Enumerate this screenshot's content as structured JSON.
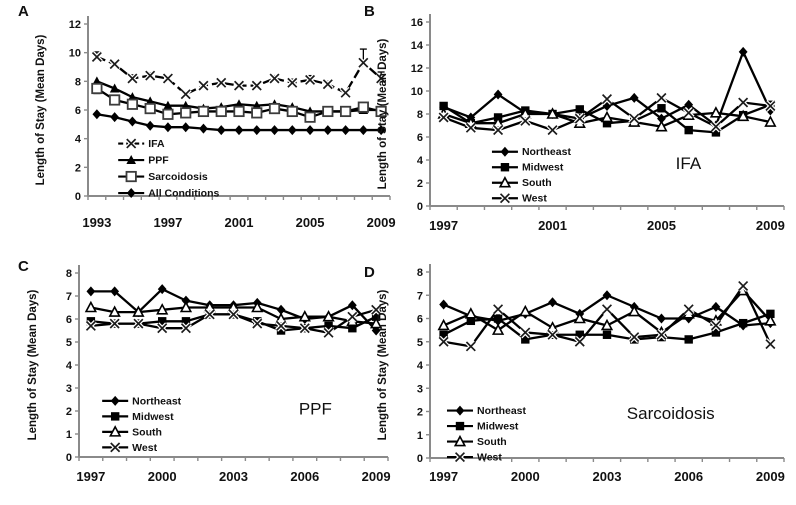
{
  "figure": {
    "description": "Four-panel line chart figure of hospital length of stay",
    "background": "#ffffff",
    "line_color": "#000000",
    "axis_color": "#8a8a8a",
    "text_color": "#111111"
  },
  "chart_data": [
    {
      "panel_label": "A",
      "type": "line",
      "ylabel": "Length of Stay (Mean Days)",
      "xlabel": "",
      "ylim": [
        0,
        12
      ],
      "ytick_step": 2,
      "x": [
        1993,
        1994,
        1995,
        1996,
        1997,
        1998,
        1999,
        2000,
        2001,
        2002,
        2003,
        2004,
        2005,
        2006,
        2007,
        2008,
        2009
      ],
      "xtick_labels": [
        1993,
        1997,
        2001,
        2005,
        2009
      ],
      "grid": false,
      "legend_position": "lower-left",
      "annotation": null,
      "series": [
        {
          "name": "IFA",
          "marker": "x",
          "dash": true,
          "values": [
            9.7,
            9.2,
            8.2,
            8.4,
            8.2,
            7.1,
            7.7,
            7.9,
            7.7,
            7.7,
            8.2,
            7.9,
            8.1,
            7.8,
            7.2,
            9.3,
            8.2
          ],
          "errors_up": [
            0.35,
            0,
            0.25,
            0.2,
            0.15,
            0,
            0.1,
            0,
            0,
            0.15,
            0.2,
            0.25,
            0.3,
            0.2,
            0,
            0.95,
            0.45
          ]
        },
        {
          "name": "PPF",
          "marker": "triangle-filled",
          "dash": false,
          "values": [
            8.0,
            7.5,
            6.9,
            6.6,
            6.3,
            6.3,
            6.1,
            6.2,
            6.4,
            6.3,
            6.4,
            6.2,
            5.9,
            5.9,
            5.9,
            6.0,
            6.0
          ]
        },
        {
          "name": "Sarcoidosis",
          "marker": "square-open",
          "dash": false,
          "values": [
            7.5,
            6.7,
            6.4,
            6.1,
            5.7,
            5.8,
            5.9,
            5.9,
            5.9,
            5.8,
            6.1,
            5.9,
            5.5,
            5.9,
            5.9,
            6.2,
            5.9
          ],
          "errors_down": [
            0.35,
            0,
            0,
            0,
            0,
            0,
            0,
            0,
            0,
            0,
            0,
            0,
            0,
            0,
            0,
            0,
            0
          ],
          "errors_up": [
            0,
            0,
            0,
            0,
            0,
            0,
            0,
            0,
            0,
            0,
            0,
            0,
            0,
            0,
            0,
            0,
            0.25
          ]
        },
        {
          "name": "All Conditions",
          "marker": "diamond-filled",
          "dash": false,
          "values": [
            5.7,
            5.5,
            5.2,
            4.9,
            4.8,
            4.8,
            4.7,
            4.6,
            4.6,
            4.6,
            4.6,
            4.6,
            4.6,
            4.6,
            4.6,
            4.6,
            4.6
          ]
        }
      ]
    },
    {
      "panel_label": "B",
      "type": "line",
      "ylabel": "Length of Stay (Mean Days)",
      "xlabel": "",
      "ylim": [
        0,
        16
      ],
      "ytick_step": 2,
      "x": [
        1997,
        1998,
        1999,
        2000,
        2001,
        2002,
        2003,
        2004,
        2005,
        2006,
        2007,
        2008,
        2009
      ],
      "xtick_labels": [
        1997,
        2001,
        2005,
        2009
      ],
      "grid": false,
      "legend_position": "lower-left",
      "annotation": "IFA",
      "series": [
        {
          "name": "Northeast",
          "marker": "diamond-filled",
          "dash": false,
          "values": [
            8.6,
            7.7,
            9.7,
            8.1,
            8.0,
            7.6,
            8.7,
            9.4,
            7.6,
            8.8,
            7.0,
            13.4,
            8.3
          ]
        },
        {
          "name": "Midwest",
          "marker": "square-filled",
          "dash": false,
          "values": [
            8.7,
            7.2,
            7.7,
            8.3,
            8.0,
            8.4,
            7.2,
            7.4,
            8.5,
            6.6,
            6.4,
            7.9,
            8.8
          ]
        },
        {
          "name": "South",
          "marker": "triangle-open",
          "dash": false,
          "values": [
            8.0,
            7.2,
            7.2,
            8.0,
            8.0,
            7.2,
            7.7,
            7.3,
            6.9,
            7.9,
            8.1,
            7.8,
            7.3
          ]
        },
        {
          "name": "West",
          "marker": "x",
          "dash": false,
          "values": [
            7.7,
            6.8,
            6.6,
            7.4,
            6.6,
            7.6,
            9.3,
            7.6,
            9.4,
            8.1,
            6.9,
            9.0,
            8.7
          ]
        }
      ]
    },
    {
      "panel_label": "C",
      "type": "line",
      "ylabel": "Length of Stay (Mean Days)",
      "xlabel": "",
      "ylim": [
        0,
        8
      ],
      "ytick_step": 1,
      "x": [
        1997,
        1998,
        1999,
        2000,
        2001,
        2002,
        2003,
        2004,
        2005,
        2006,
        2007,
        2008,
        2009
      ],
      "xtick_labels": [
        1997,
        2000,
        2003,
        2006,
        2009
      ],
      "grid": false,
      "legend_position": "lower-left",
      "annotation": "PPF",
      "series": [
        {
          "name": "Northeast",
          "marker": "diamond-filled",
          "dash": false,
          "values": [
            7.2,
            7.2,
            6.3,
            7.3,
            6.8,
            6.6,
            6.6,
            6.7,
            6.4,
            6.0,
            6.1,
            6.6,
            5.5
          ]
        },
        {
          "name": "Midwest",
          "marker": "square-filled",
          "dash": false,
          "values": [
            5.9,
            5.8,
            5.8,
            5.9,
            5.9,
            6.2,
            6.2,
            5.9,
            5.5,
            5.6,
            5.7,
            5.6,
            6.1
          ]
        },
        {
          "name": "South",
          "marker": "triangle-open",
          "dash": false,
          "values": [
            6.5,
            6.3,
            6.3,
            6.4,
            6.5,
            6.5,
            6.5,
            6.5,
            6.0,
            6.1,
            6.1,
            5.9,
            5.8
          ]
        },
        {
          "name": "West",
          "marker": "x",
          "dash": false,
          "values": [
            5.7,
            5.8,
            5.8,
            5.6,
            5.6,
            6.2,
            6.2,
            5.8,
            5.7,
            5.6,
            5.4,
            6.1,
            6.4
          ]
        }
      ]
    },
    {
      "panel_label": "D",
      "type": "line",
      "ylabel": "Length of Stay (Mean Days)",
      "xlabel": "",
      "ylim": [
        0,
        8
      ],
      "ytick_step": 1,
      "x": [
        1997,
        1998,
        1999,
        2000,
        2001,
        2002,
        2003,
        2004,
        2005,
        2006,
        2007,
        2008,
        2009
      ],
      "xtick_labels": [
        1997,
        2000,
        2003,
        2006,
        2009
      ],
      "grid": false,
      "legend_position": "lower-left",
      "annotation": "Sarcoidosis",
      "series": [
        {
          "name": "Northeast",
          "marker": "diamond-filled",
          "dash": false,
          "values": [
            6.6,
            6.1,
            5.9,
            6.2,
            6.7,
            6.2,
            7.0,
            6.5,
            6.0,
            6.0,
            6.5,
            5.7,
            5.8
          ]
        },
        {
          "name": "Midwest",
          "marker": "square-filled",
          "dash": false,
          "values": [
            5.3,
            5.9,
            6.0,
            5.1,
            5.3,
            5.3,
            5.3,
            5.1,
            5.2,
            5.1,
            5.4,
            5.8,
            6.2
          ]
        },
        {
          "name": "South",
          "marker": "triangle-open",
          "dash": false,
          "values": [
            5.7,
            6.2,
            5.5,
            6.3,
            5.6,
            6.0,
            5.7,
            6.3,
            5.4,
            6.2,
            5.9,
            7.2,
            5.9
          ]
        },
        {
          "name": "West",
          "marker": "x",
          "dash": false,
          "values": [
            5.0,
            4.8,
            6.4,
            5.4,
            5.3,
            5.0,
            6.4,
            5.2,
            5.3,
            6.4,
            5.7,
            7.4,
            4.9
          ]
        }
      ]
    }
  ]
}
